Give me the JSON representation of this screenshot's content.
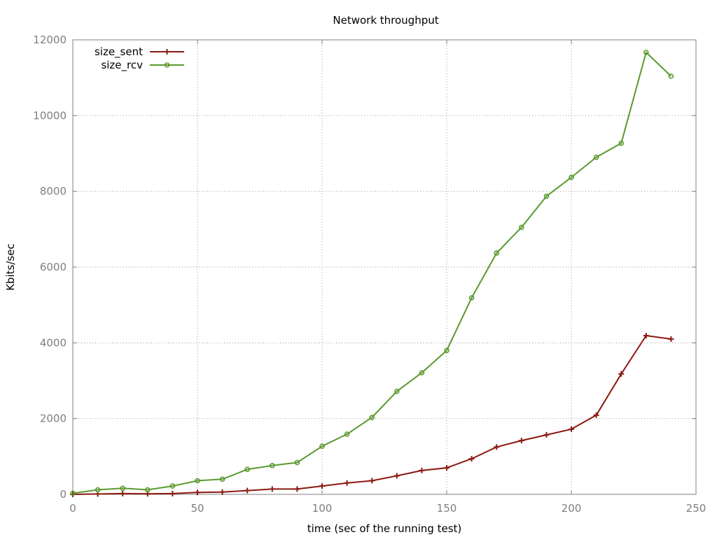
{
  "chart_data": {
    "type": "line",
    "title": "Network throughput",
    "xlabel": "time (sec of the running test)",
    "ylabel": "Kbits/sec",
    "xlim": [
      0,
      250
    ],
    "ylim": [
      0,
      12000
    ],
    "xticks": [
      0,
      50,
      100,
      150,
      200,
      250
    ],
    "yticks": [
      0,
      2000,
      4000,
      6000,
      8000,
      10000,
      12000
    ],
    "grid": true,
    "legend_position": "top-left",
    "series": [
      {
        "name": "size_sent",
        "color": "#8b1a10",
        "marker": "plus",
        "x": [
          0,
          10,
          20,
          30,
          40,
          50,
          60,
          70,
          80,
          90,
          100,
          110,
          120,
          130,
          140,
          150,
          160,
          170,
          180,
          190,
          200,
          210,
          220,
          230,
          240
        ],
        "y": [
          0,
          10,
          20,
          15,
          20,
          50,
          60,
          100,
          140,
          140,
          220,
          300,
          360,
          490,
          630,
          700,
          940,
          1250,
          1420,
          1570,
          1720,
          2090,
          3180,
          4190,
          4100
        ]
      },
      {
        "name": "size_rcv",
        "color": "#5a9a2e",
        "marker": "circle",
        "x": [
          0,
          10,
          20,
          30,
          40,
          50,
          60,
          70,
          80,
          90,
          100,
          110,
          120,
          130,
          140,
          150,
          160,
          170,
          180,
          190,
          200,
          210,
          220,
          230,
          240
        ],
        "y": [
          30,
          120,
          160,
          120,
          220,
          360,
          400,
          660,
          760,
          840,
          1270,
          1590,
          2030,
          2720,
          3210,
          3800,
          5190,
          6370,
          7050,
          7870,
          8370,
          8900,
          9270,
          11670,
          11040
        ]
      }
    ]
  }
}
